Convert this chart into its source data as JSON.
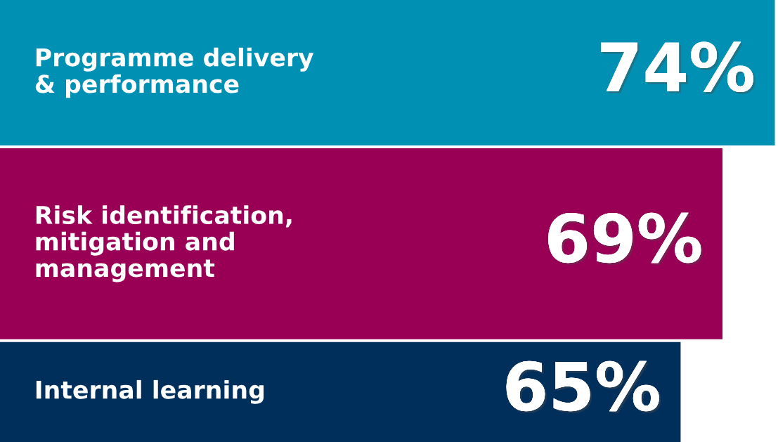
{
  "chart_data": {
    "type": "bar",
    "orientation": "horizontal",
    "categories": [
      "Programme delivery\n& performance",
      "Risk identification,\nmitigation and\nmanagement",
      "Internal learning"
    ],
    "values": [
      74,
      69,
      65
    ],
    "colors": [
      "#0090b3",
      "#990055",
      "#002f5c"
    ],
    "value_labels": [
      "74%",
      "69%",
      "65%"
    ],
    "xlim": [
      0,
      74.3
    ]
  }
}
